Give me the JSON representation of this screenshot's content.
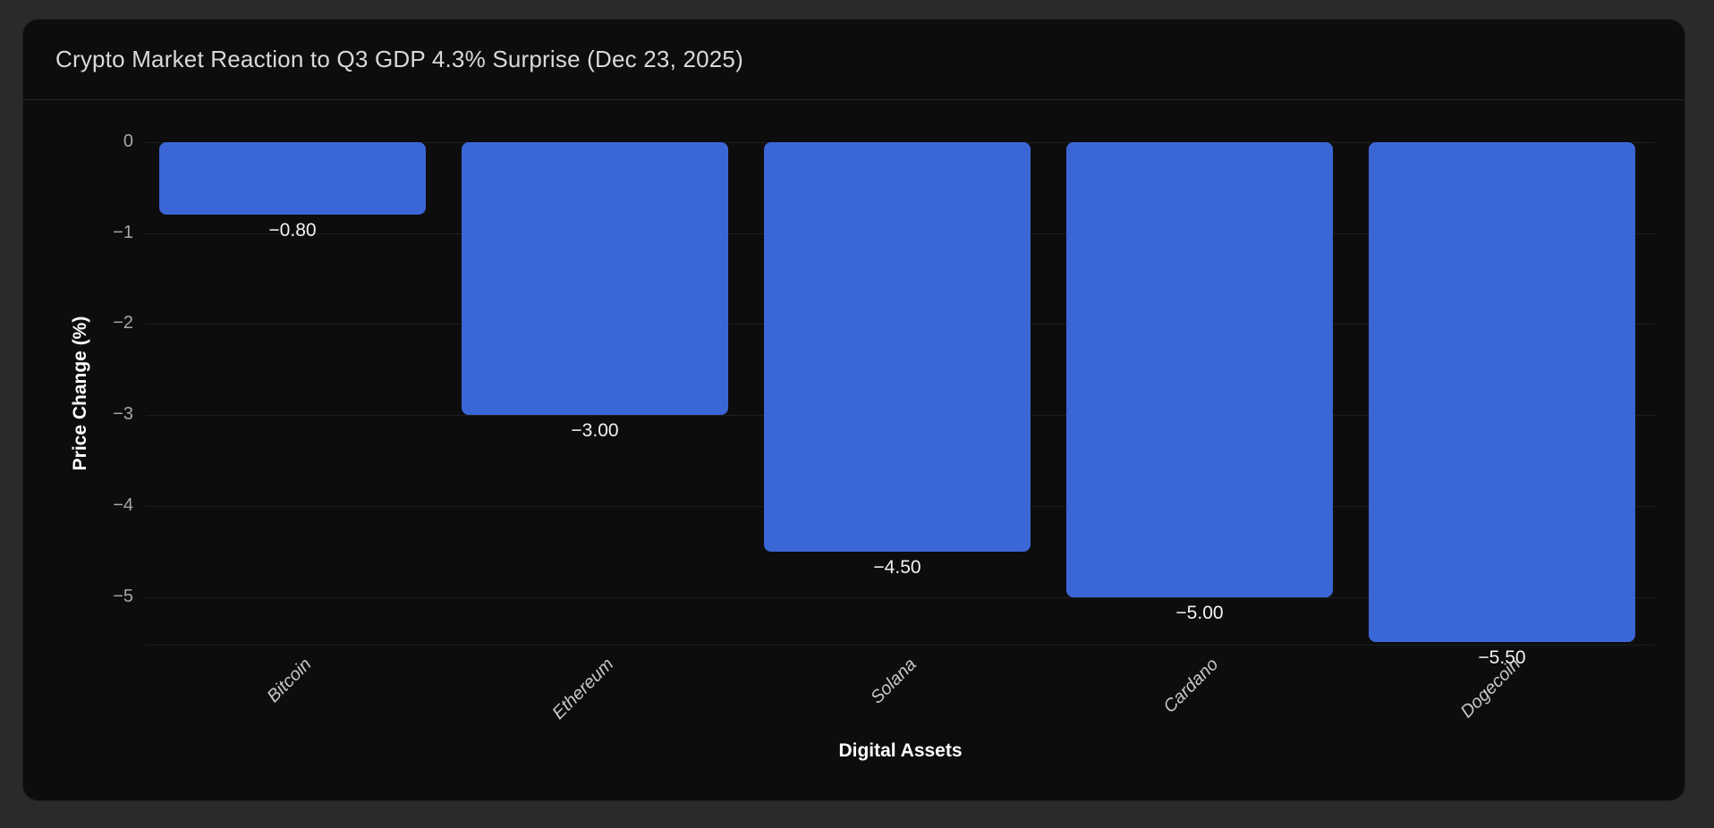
{
  "chart_data": {
    "type": "bar",
    "title": "Crypto Market Reaction to Q3 GDP 4.3% Surprise (Dec 23, 2025)",
    "xlabel": "Digital Assets",
    "ylabel": "Price Change (%)",
    "categories": [
      "Bitcoin",
      "Ethereum",
      "Solana",
      "Cardano",
      "Dogecoin"
    ],
    "values": [
      -0.8,
      -3.0,
      -4.5,
      -5.0,
      -5.5
    ],
    "bar_value_labels": [
      "−0.80",
      "−3.00",
      "−4.50",
      "−5.00",
      "−5.50"
    ],
    "yticks": [
      0,
      -1,
      -2,
      -3,
      -4,
      -5
    ],
    "ytick_labels": [
      "0",
      "−1",
      "−2",
      "−3",
      "−4",
      "−5"
    ],
    "ylim": [
      -5.53,
      0
    ],
    "grid": true,
    "legend_position": "none",
    "colors": {
      "bar": "#3a66d6",
      "page_background": "#2a2a2c",
      "card_background": "#0d0d0e",
      "grid_line": "#1e1e20",
      "title_text": "#d9d9db",
      "tick_text": "#a8a8aa",
      "value_label_text": "#f2f2f2",
      "axis_title_text": "#ffffff"
    }
  }
}
